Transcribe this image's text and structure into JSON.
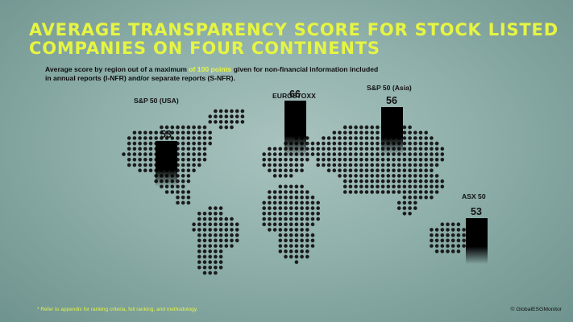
{
  "title_line1": "AVERAGE TRANSPARENCY SCORE FOR STOCK LISTED",
  "title_line2": "COMPANIES ON FOUR CONTINENTS",
  "subtitle_before": "Average score by region out of a maximum ",
  "subtitle_highlight": "of 100 points",
  "subtitle_after": " given for non-financial information included in annual reports (I-NFR) and/or separate reports (S-NFR).",
  "footnote": "* Refer to appendix for ranking criteria, full ranking, and methodology.",
  "credit": "© GlobalESGMonitor",
  "colors": {
    "title": "#e6f542",
    "bar": "#000000",
    "dots": "#1a1a1a"
  },
  "chart_data": {
    "type": "bar",
    "categories": [
      "S&P 50 (USA)",
      "EUROSTOXX",
      "S&P 50 (Asia)",
      "ASX 50"
    ],
    "values": [
      53,
      66,
      56,
      53
    ],
    "ylim": [
      0,
      100
    ],
    "grid": false,
    "legend": "none"
  }
}
